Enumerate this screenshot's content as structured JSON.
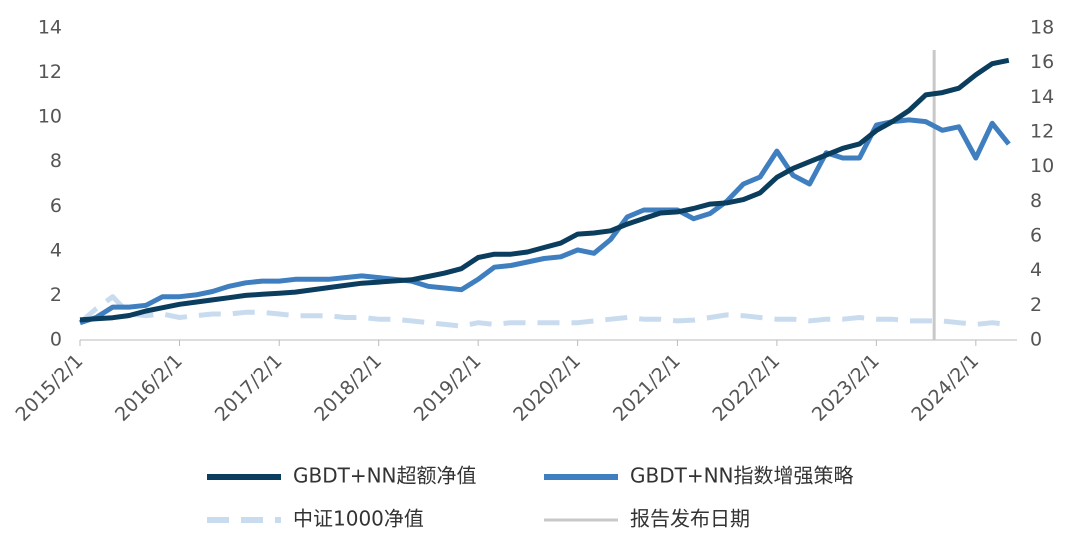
{
  "chart_data": {
    "type": "line",
    "x": [
      "2015/2/1",
      "2015/4/1",
      "2015/6/1",
      "2015/8/1",
      "2015/10/1",
      "2015/12/1",
      "2016/2/1",
      "2016/4/1",
      "2016/6/1",
      "2016/8/1",
      "2016/10/1",
      "2016/12/1",
      "2017/2/1",
      "2017/4/1",
      "2017/6/1",
      "2017/8/1",
      "2017/10/1",
      "2017/12/1",
      "2018/2/1",
      "2018/4/1",
      "2018/6/1",
      "2018/8/1",
      "2018/10/1",
      "2018/12/1",
      "2019/2/1",
      "2019/4/1",
      "2019/6/1",
      "2019/8/1",
      "2019/10/1",
      "2019/12/1",
      "2020/2/1",
      "2020/4/1",
      "2020/6/1",
      "2020/8/1",
      "2020/10/1",
      "2020/12/1",
      "2021/2/1",
      "2021/4/1",
      "2021/6/1",
      "2021/8/1",
      "2021/10/1",
      "2021/12/1",
      "2022/2/1",
      "2022/4/1",
      "2022/6/1",
      "2022/8/1",
      "2022/10/1",
      "2022/12/1",
      "2023/2/1",
      "2023/4/1",
      "2023/6/1",
      "2023/8/1",
      "2023/10/1",
      "2023/12/1",
      "2024/2/1",
      "2024/4/1",
      "2024/6/1"
    ],
    "series": [
      {
        "name": "GBDT+NN超额净值",
        "color": "#0b3d5e",
        "axis": "y",
        "dash": false,
        "values": [
          0.9,
          0.95,
          1.0,
          1.1,
          1.3,
          1.45,
          1.6,
          1.7,
          1.8,
          1.9,
          2.0,
          2.05,
          2.1,
          2.15,
          2.25,
          2.35,
          2.45,
          2.55,
          2.6,
          2.65,
          2.7,
          2.85,
          3.0,
          3.2,
          3.7,
          3.85,
          3.85,
          3.95,
          4.15,
          4.35,
          4.75,
          4.8,
          4.9,
          5.2,
          5.45,
          5.7,
          5.75,
          5.9,
          6.1,
          6.15,
          6.3,
          6.6,
          7.3,
          7.7,
          8.0,
          8.3,
          8.6,
          8.8,
          9.4,
          9.8,
          10.3,
          11.0,
          11.1,
          11.3,
          11.9,
          12.4,
          12.55
        ]
      },
      {
        "name": "GBDT+NN指数增强策略",
        "color": "#3f7fc0",
        "axis": "y2",
        "dash": false,
        "values": [
          1.0,
          1.3,
          1.9,
          1.9,
          2.0,
          2.5,
          2.5,
          2.6,
          2.8,
          3.1,
          3.3,
          3.4,
          3.4,
          3.5,
          3.5,
          3.5,
          3.6,
          3.7,
          3.6,
          3.5,
          3.4,
          3.1,
          3.0,
          2.9,
          3.5,
          4.2,
          4.3,
          4.5,
          4.7,
          4.8,
          5.2,
          5.0,
          5.8,
          7.1,
          7.5,
          7.5,
          7.5,
          7.0,
          7.3,
          8.0,
          9.0,
          9.4,
          10.9,
          9.5,
          9.0,
          10.8,
          10.5,
          10.5,
          12.4,
          12.6,
          12.7,
          12.6,
          12.1,
          12.3,
          10.5,
          12.5,
          11.3
        ]
      },
      {
        "name": "中证1000净值",
        "color": "#c9dcef",
        "axis": "y2",
        "dash": true,
        "values": [
          1.0,
          1.8,
          2.5,
          1.5,
          1.4,
          1.5,
          1.3,
          1.4,
          1.5,
          1.5,
          1.6,
          1.6,
          1.5,
          1.4,
          1.4,
          1.4,
          1.3,
          1.3,
          1.2,
          1.2,
          1.1,
          1.0,
          0.9,
          0.8,
          1.0,
          0.9,
          1.0,
          1.0,
          1.0,
          1.0,
          1.0,
          1.1,
          1.2,
          1.3,
          1.2,
          1.2,
          1.1,
          1.15,
          1.3,
          1.45,
          1.4,
          1.3,
          1.2,
          1.2,
          1.1,
          1.2,
          1.2,
          1.3,
          1.2,
          1.2,
          1.1,
          1.1,
          1.1,
          1.0,
          0.9,
          1.0,
          0.9
        ]
      }
    ],
    "report_line": {
      "name": "报告发布日期",
      "x": "2023/9/1",
      "color": "#c8c8c8"
    },
    "xlim": [
      "2015/2/1",
      "2024/7/1"
    ],
    "xticks": [
      "2015/2/1",
      "2016/2/1",
      "2017/2/1",
      "2018/2/1",
      "2019/2/1",
      "2020/2/1",
      "2021/2/1",
      "2022/2/1",
      "2023/2/1",
      "2024/2/1"
    ],
    "ylim": [
      0,
      14
    ],
    "yticks": [
      0,
      2,
      4,
      6,
      8,
      10,
      12,
      14
    ],
    "y2lim": [
      0,
      18
    ],
    "y2ticks": [
      0,
      2,
      4,
      6,
      8,
      10,
      12,
      14,
      16,
      18
    ],
    "grid": false
  }
}
